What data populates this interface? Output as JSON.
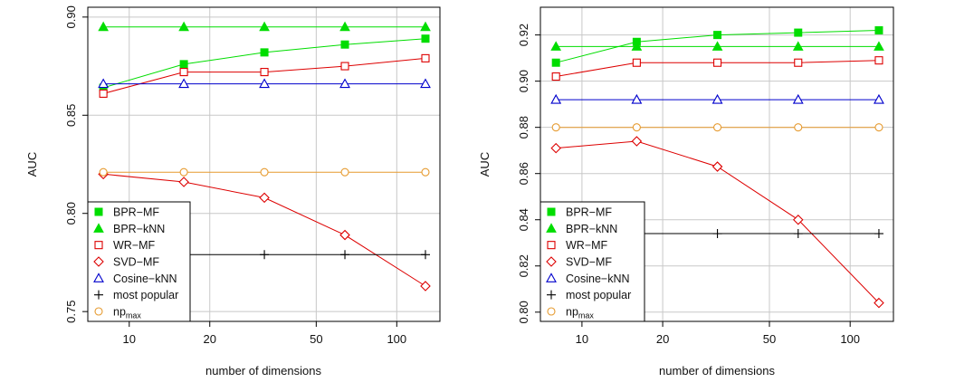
{
  "chart_data": [
    {
      "type": "line",
      "xscale": "log",
      "x": [
        8,
        16,
        32,
        64,
        128
      ],
      "xticks": [
        "10",
        "20",
        "50",
        "100"
      ],
      "xtick_values": [
        10,
        20,
        50,
        100
      ],
      "yticks": [
        "0.75",
        "0.80",
        "0.85",
        "0.90"
      ],
      "ytick_values": [
        0.75,
        0.8,
        0.85,
        0.9
      ],
      "xlim": [
        7,
        145
      ],
      "ylim": [
        0.745,
        0.905
      ],
      "xlabel": "number of dimensions",
      "ylabel": "AUC",
      "grid": true,
      "legend_position": "bottom-left",
      "series": [
        {
          "name": "BPR−MF",
          "marker": "filled-square",
          "color": "#00dd00",
          "values": [
            0.864,
            0.876,
            0.882,
            0.886,
            0.889
          ]
        },
        {
          "name": "BPR−kNN",
          "marker": "filled-triangle",
          "color": "#00dd00",
          "values": [
            0.895,
            0.895,
            0.895,
            0.895,
            0.895
          ]
        },
        {
          "name": "WR−MF",
          "marker": "open-square",
          "color": "#dd0000",
          "values": [
            0.861,
            0.872,
            0.872,
            0.875,
            0.879
          ]
        },
        {
          "name": "SVD−MF",
          "marker": "open-diamond",
          "color": "#dd0000",
          "values": [
            0.82,
            0.816,
            0.808,
            0.789,
            0.763
          ]
        },
        {
          "name": "Cosine−kNN",
          "marker": "open-triangle",
          "color": "#0000cc",
          "values": [
            0.866,
            0.866,
            0.866,
            0.866,
            0.866
          ]
        },
        {
          "name": "most popular",
          "marker": "plus",
          "color": "#000000",
          "values": [
            0.779,
            0.779,
            0.779,
            0.779,
            0.779
          ]
        },
        {
          "name": "np",
          "subscript": "max",
          "marker": "open-circle",
          "color": "#e69a2e",
          "values": [
            0.821,
            0.821,
            0.821,
            0.821,
            0.821
          ]
        }
      ]
    },
    {
      "type": "line",
      "xscale": "log",
      "x": [
        8,
        16,
        32,
        64,
        128
      ],
      "xticks": [
        "10",
        "20",
        "50",
        "100"
      ],
      "xtick_values": [
        10,
        20,
        50,
        100
      ],
      "yticks": [
        "0.80",
        "0.82",
        "0.84",
        "0.86",
        "0.88",
        "0.90",
        "0.92"
      ],
      "ytick_values": [
        0.8,
        0.82,
        0.84,
        0.86,
        0.88,
        0.9,
        0.92
      ],
      "xlim": [
        7,
        145
      ],
      "ylim": [
        0.796,
        0.932
      ],
      "xlabel": "number of dimensions",
      "ylabel": "AUC",
      "grid": true,
      "legend_position": "bottom-left",
      "series": [
        {
          "name": "BPR−MF",
          "marker": "filled-square",
          "color": "#00dd00",
          "values": [
            0.908,
            0.917,
            0.92,
            0.921,
            0.922
          ]
        },
        {
          "name": "BPR−kNN",
          "marker": "filled-triangle",
          "color": "#00dd00",
          "values": [
            0.915,
            0.915,
            0.915,
            0.915,
            0.915
          ]
        },
        {
          "name": "WR−MF",
          "marker": "open-square",
          "color": "#dd0000",
          "values": [
            0.902,
            0.908,
            0.908,
            0.908,
            0.909
          ]
        },
        {
          "name": "SVD−MF",
          "marker": "open-diamond",
          "color": "#dd0000",
          "values": [
            0.871,
            0.874,
            0.863,
            0.84,
            0.804
          ]
        },
        {
          "name": "Cosine−kNN",
          "marker": "open-triangle",
          "color": "#0000cc",
          "values": [
            0.892,
            0.892,
            0.892,
            0.892,
            0.892
          ]
        },
        {
          "name": "most popular",
          "marker": "plus",
          "color": "#000000",
          "values": [
            0.834,
            0.834,
            0.834,
            0.834,
            0.834
          ]
        },
        {
          "name": "np",
          "subscript": "max",
          "marker": "open-circle",
          "color": "#e69a2e",
          "values": [
            0.88,
            0.88,
            0.88,
            0.88,
            0.88
          ]
        }
      ]
    }
  ]
}
